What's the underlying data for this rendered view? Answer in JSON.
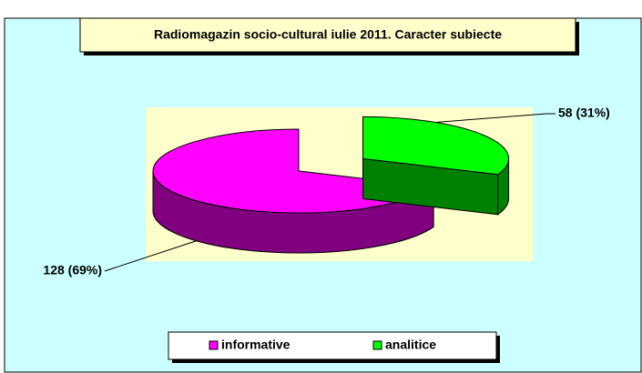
{
  "chart_data": {
    "type": "pie",
    "title": "Radiomagazin socio-cultural iulie 2011. Caracter subiecte",
    "categories": [
      "informative",
      "analitice"
    ],
    "values": [
      128,
      58
    ],
    "value_labels": [
      "128 (69%)",
      "58 (31%)"
    ],
    "colors": [
      "#ff00ff",
      "#00ff00"
    ],
    "legend": "bottom"
  }
}
